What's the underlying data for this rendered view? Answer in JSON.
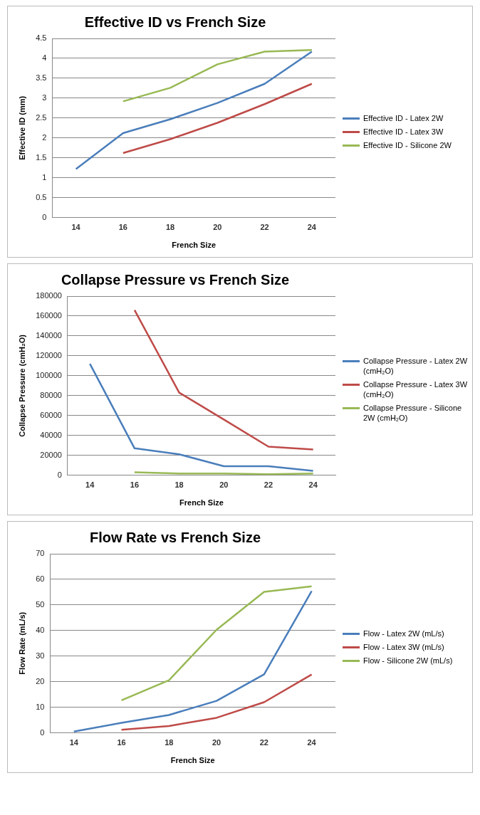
{
  "chart_data": [
    {
      "type": "line",
      "title": "Effective ID vs French Size",
      "xlabel": "French Size",
      "ylabel": "Effective ID (mm)",
      "categories": [
        "14",
        "16",
        "18",
        "20",
        "22",
        "24"
      ],
      "ylim": [
        0,
        4.5
      ],
      "yticks": [
        0,
        0.5,
        1,
        1.5,
        2,
        2.5,
        3,
        3.5,
        4,
        4.5
      ],
      "grid": "y",
      "legend": "right",
      "series": [
        {
          "name": "Effective ID - Latex 2W",
          "color": "#4a7ebb",
          "values": [
            1.22,
            2.12,
            2.47,
            2.88,
            3.36,
            4.17
          ]
        },
        {
          "name": "Effective ID - Latex 3W",
          "color": "#be4b48",
          "values": [
            null,
            1.62,
            1.97,
            2.38,
            2.85,
            3.36
          ]
        },
        {
          "name": "Effective ID - Silicone 2W",
          "color": "#98b954",
          "values": [
            null,
            2.92,
            3.26,
            3.85,
            4.17,
            4.21
          ]
        }
      ]
    },
    {
      "type": "line",
      "title": "Collapse Pressure vs French Size",
      "xlabel": "French Size",
      "ylabel": "Collapse Pressure (cmH₂O)",
      "categories": [
        "14",
        "16",
        "18",
        "20",
        "22",
        "24"
      ],
      "ylim": [
        0,
        180000
      ],
      "yticks": [
        0,
        20000,
        40000,
        60000,
        80000,
        100000,
        120000,
        140000,
        160000,
        180000
      ],
      "grid": "y",
      "legend": "right",
      "series": [
        {
          "name": "Collapse Pressure - Latex 2W (cmH₂O)",
          "color": "#4a7ebb",
          "values": [
            112000,
            27000,
            21000,
            9000,
            9000,
            4400
          ]
        },
        {
          "name": "Collapse Pressure - Latex 3W (cmH₂O)",
          "color": "#be4b48",
          "values": [
            null,
            166000,
            83000,
            56000,
            28700,
            25800
          ]
        },
        {
          "name": "Collapse Pressure - Silicone 2W (cmH₂O)",
          "color": "#98b954",
          "values": [
            null,
            2900,
            1700,
            1700,
            1000,
            1700
          ]
        }
      ]
    },
    {
      "type": "line",
      "title": "Flow Rate vs French Size",
      "xlabel": "French Size",
      "ylabel": "Flow Rate (mL/s)",
      "categories": [
        "14",
        "16",
        "18",
        "20",
        "22",
        "24"
      ],
      "ylim": [
        0,
        70
      ],
      "yticks": [
        0,
        10,
        20,
        30,
        40,
        50,
        60,
        70
      ],
      "grid": "y",
      "legend": "right",
      "series": [
        {
          "name": "Flow - Latex 2W (mL/s)",
          "color": "#4a7ebb",
          "values": [
            0.5,
            3.9,
            7.0,
            12.5,
            22.9,
            55.4
          ]
        },
        {
          "name": "Flow - Latex 3W (mL/s)",
          "color": "#be4b48",
          "values": [
            null,
            1.2,
            2.7,
            5.9,
            12.0,
            22.8
          ]
        },
        {
          "name": "Flow - Silicone 2W (mL/s)",
          "color": "#98b954",
          "values": [
            null,
            12.7,
            20.6,
            40.3,
            55.1,
            57.3
          ]
        }
      ]
    }
  ]
}
